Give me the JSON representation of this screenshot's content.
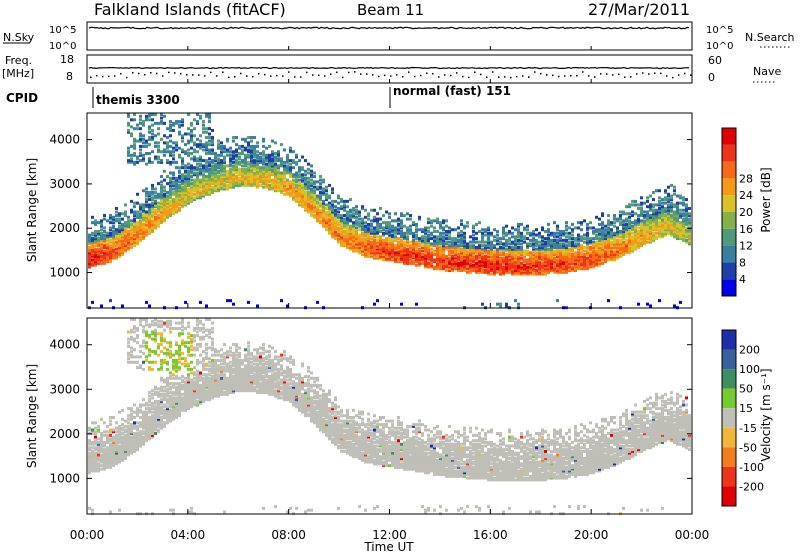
{
  "header": {
    "station": "Falkland Islands (fitACF)",
    "beam": "Beam 11",
    "date": "27/Mar/2011"
  },
  "side_labels": {
    "nsky": "N.Sky",
    "nsearch": "N.Search",
    "freq": "Freq.",
    "freq_unit": "[MHz]",
    "nave": "Nave",
    "cpid": "CPID"
  },
  "strip_ticks": {
    "nsky_left_top": "10^5",
    "nsky_left_bottom": "10^0",
    "nsky_right_top": "10^5",
    "nsky_right_bottom": "10^0",
    "freq_left_top": "18",
    "freq_left_bottom": "8",
    "nave_right_top": "60",
    "nave_right_bottom": "0"
  },
  "cpid_modes": [
    {
      "label": "themis 3300",
      "start_hour": 0.0
    },
    {
      "label": "normal (fast) 151",
      "start_hour": 11.95
    }
  ],
  "x_axis": {
    "label": "Time UT",
    "ticks": [
      "00:00",
      "04:00",
      "08:00",
      "12:00",
      "16:00",
      "20:00",
      "00:00"
    ]
  },
  "y_axis": {
    "label": "Slant Range [km]",
    "ticks": [
      "1000",
      "2000",
      "3000",
      "4000"
    ]
  },
  "power_scale": {
    "label": "Power [dB]",
    "ticks": [
      "4",
      "8",
      "12",
      "16",
      "20",
      "24",
      "28"
    ],
    "colors": [
      "#0000ee",
      "#1d3fa8",
      "#3a7f9f",
      "#4f9a7a",
      "#83b14a",
      "#d7c228",
      "#f59a16",
      "#f46a16",
      "#ee3418",
      "#e00000"
    ]
  },
  "velocity_scale": {
    "label": "Velocity [m s⁻¹]",
    "ticks": [
      "200",
      "100",
      "50",
      "15",
      "-15",
      "-50",
      "-100",
      "-200"
    ],
    "colors": [
      "#1a2fa8",
      "#3a5fa0",
      "#3c8f60",
      "#75cc2c",
      "#bfbfb8",
      "#f2b63a",
      "#f27d1e",
      "#ee3418",
      "#e00000"
    ]
  },
  "chart_data": [
    {
      "type": "heatmap",
      "title": "",
      "xlabel": "Time UT",
      "ylabel": "Slant Range [km]",
      "xlim": [
        0,
        24
      ],
      "ylim": [
        200,
        4600
      ],
      "colorbar_label": "Power [dB]",
      "colorbar_range": [
        0,
        30
      ],
      "echo_band_center_km": [
        [
          0.0,
          1350
        ],
        [
          1.0,
          1500
        ],
        [
          2.0,
          1900
        ],
        [
          3.0,
          2400
        ],
        [
          4.0,
          2800
        ],
        [
          5.0,
          3050
        ],
        [
          6.0,
          3200
        ],
        [
          7.0,
          3150
        ],
        [
          8.0,
          2950
        ],
        [
          9.0,
          2450
        ],
        [
          10.0,
          1850
        ],
        [
          11.0,
          1600
        ],
        [
          12.0,
          1500
        ],
        [
          13.0,
          1400
        ],
        [
          14.0,
          1300
        ],
        [
          15.0,
          1250
        ],
        [
          16.0,
          1200
        ],
        [
          17.0,
          1180
        ],
        [
          18.0,
          1200
        ],
        [
          19.0,
          1250
        ],
        [
          20.0,
          1350
        ],
        [
          21.0,
          1550
        ],
        [
          22.0,
          1850
        ],
        [
          23.0,
          2100
        ],
        [
          24.0,
          1850
        ]
      ],
      "peak_power_db": [
        [
          0.0,
          28
        ],
        [
          2.0,
          22
        ],
        [
          4.0,
          18
        ],
        [
          6.0,
          18
        ],
        [
          8.0,
          20
        ],
        [
          10.0,
          22
        ],
        [
          12.0,
          26
        ],
        [
          16.0,
          27
        ],
        [
          20.0,
          25
        ],
        [
          22.0,
          20
        ],
        [
          24.0,
          16
        ]
      ]
    },
    {
      "type": "heatmap",
      "title": "",
      "xlabel": "Time UT",
      "ylabel": "Slant Range [km]",
      "xlim": [
        0,
        24
      ],
      "ylim": [
        200,
        4600
      ],
      "colorbar_label": "Velocity [m s⁻¹]",
      "colorbar_range": [
        -200,
        200
      ],
      "dominant_velocity_class": "-15 to 15 (ground scatter)",
      "patches": [
        {
          "hour_range": [
            2.3,
            4.2
          ],
          "range_km": [
            3300,
            4300
          ],
          "velocity": "15 to 50"
        }
      ]
    }
  ]
}
